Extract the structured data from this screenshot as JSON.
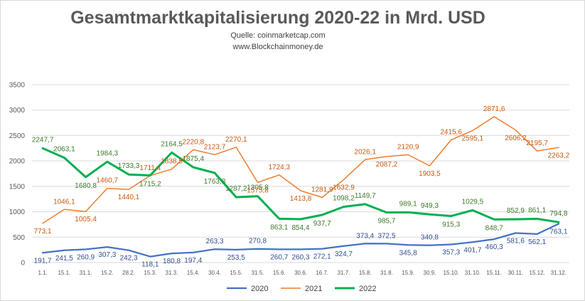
{
  "header": {
    "title": "Gesamtmarktkapitalisierung 2020-22 in Mrd. USD",
    "source": "Quelle: coinmarketcap.com",
    "website": "www.Blockchainmoney.de"
  },
  "chart_data": {
    "type": "line",
    "title": "Gesamtmarktkapitalisierung 2020-22 in Mrd. USD",
    "xlabel": "",
    "ylabel": "",
    "ylim": [
      0,
      3500
    ],
    "yticks": [
      "0",
      "500",
      "1000",
      "1500",
      "2000",
      "2500",
      "3000",
      "3500"
    ],
    "grid": "horizontal",
    "legend_position": "bottom",
    "categories": [
      "1.1.",
      "15.1.",
      "31.1.",
      "15.2.",
      "28.2.",
      "15.3.",
      "31.3.",
      "15.4.",
      "30.4.",
      "15.5.",
      "31.5.",
      "15.6.",
      "30.6.",
      "16.7.",
      "31.7.",
      "15.8.",
      "31.8.",
      "15.9.",
      "30.9.",
      "15.10.",
      "31.10.",
      "15.11.",
      "30.11.",
      "15.12.",
      "31.12."
    ],
    "series": [
      {
        "name": "2020",
        "color": "#4472c4",
        "values": [
          191.7,
          241.5,
          260.9,
          307.3,
          242.3,
          118.1,
          180.8,
          197.4,
          263.3,
          253.5,
          270.8,
          260.7,
          260.3,
          272.1,
          324.7,
          373.4,
          372.5,
          345.8,
          340.8,
          357.3,
          401.7,
          460.3,
          581.6,
          562.1,
          763.1
        ],
        "labels": [
          "191,7",
          "241,5",
          "260,9",
          "307,3",
          "242,3",
          "118,1",
          "180,8",
          "197,4",
          "263,3",
          "253,5",
          "270,8",
          "260,7",
          "260,3",
          "272,1",
          "324,7",
          "373,4",
          "372,5",
          "345,8",
          "340,8",
          "357,3",
          "401,7",
          "460,3",
          "581,6",
          "562,1",
          "763,1"
        ]
      },
      {
        "name": "2021",
        "color": "#ed7d31",
        "values": [
          773.1,
          1046.1,
          1005.4,
          1460.7,
          1440.1,
          1711.4,
          1838.5,
          2220.8,
          2123.7,
          2270.1,
          1575.8,
          1724.3,
          1413.8,
          1281.9,
          1632.9,
          2026.1,
          2087.2,
          2120.9,
          1903.5,
          2415.6,
          2595.1,
          2871.6,
          2606.2,
          2195.7,
          2263.2
        ],
        "labels": [
          "773,1",
          "1046,1",
          "1005,4",
          "1460,7",
          "1440,1",
          "1711,4",
          "1838,5",
          "2220,8",
          "2123,7",
          "2270,1",
          "1575,8",
          "1724,3",
          "1413,8",
          "1281,9",
          "1632,9",
          "2026,1",
          "2087,2",
          "2120,9",
          "1903,5",
          "2415,6",
          "2595,1",
          "2871,6",
          "2606,2",
          "2195,7",
          "2263,2"
        ]
      },
      {
        "name": "2022",
        "color": "#00b050",
        "values": [
          2247.7,
          2063.1,
          1680.8,
          1984.3,
          1733.3,
          1715.2,
          2164.5,
          1875.4,
          1763.8,
          1287.2,
          1305.8,
          863.1,
          854.4,
          937.7,
          1098.2,
          1149.7,
          985.7,
          989.1,
          949.3,
          915.3,
          1029.5,
          848.7,
          852.9,
          861.1,
          794.8
        ],
        "labels": [
          "2247,7",
          "2063,1",
          "1680,8",
          "1984,3",
          "1733,3",
          "1715,2",
          "2164,5",
          "1875,4",
          "1763,8",
          "1287,2",
          "1305,8",
          "863,1",
          "854,4",
          "937,7",
          "1098,2",
          "1149,7",
          "985,7",
          "989,1",
          "949,3",
          "915,3",
          "1029,5",
          "848,7",
          "852,9",
          "861,1",
          "794,8"
        ]
      }
    ]
  }
}
